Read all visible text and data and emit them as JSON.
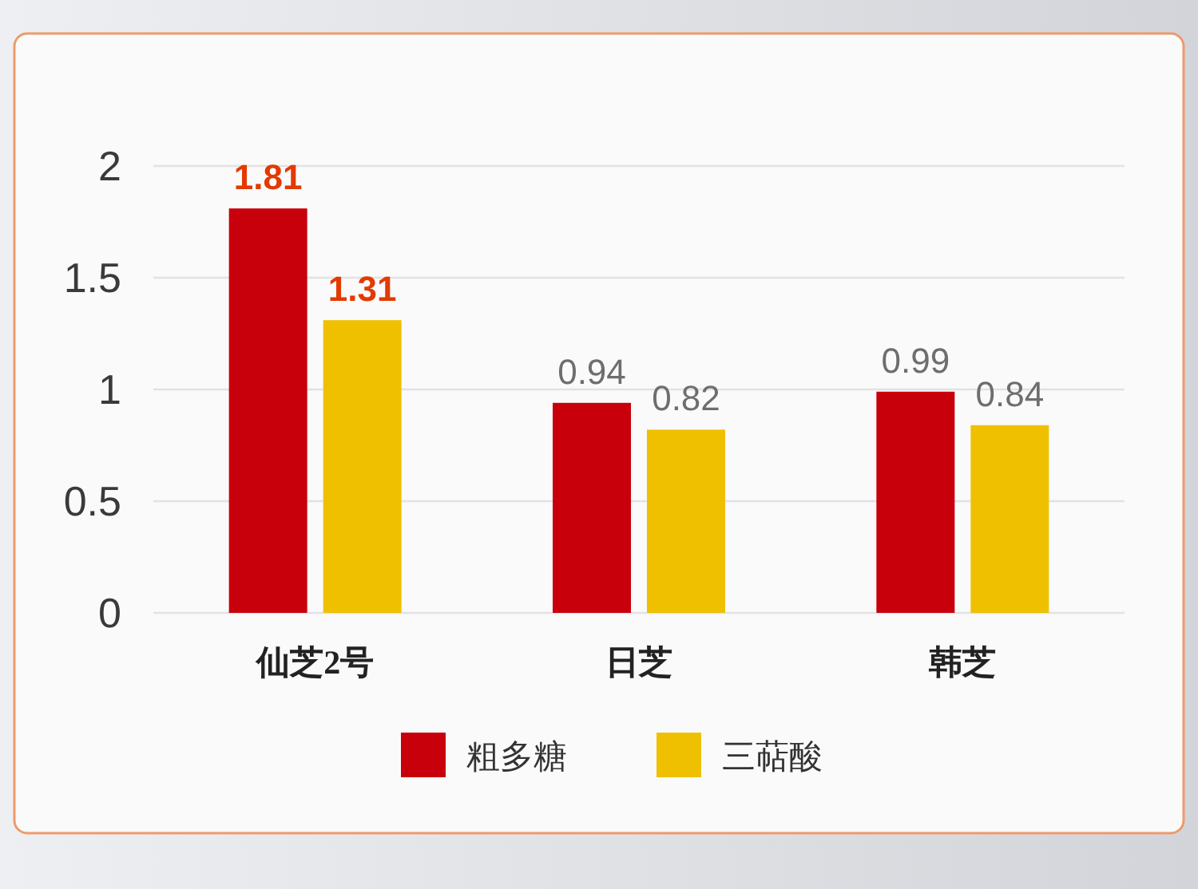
{
  "chart_data": {
    "type": "bar",
    "categories": [
      "仙芝2号",
      "日芝",
      "韩芝"
    ],
    "series": [
      {
        "name": "粗多糖",
        "color": "#c8000b",
        "values": [
          1.81,
          0.94,
          0.99
        ]
      },
      {
        "name": "三萜酸",
        "color": "#efc000",
        "values": [
          1.31,
          0.82,
          0.84
        ]
      }
    ],
    "ylim": [
      0,
      2
    ],
    "yticks": [
      0,
      0.5,
      1,
      1.5,
      2
    ],
    "grid": "y",
    "legend": "bottom",
    "data_labels": true
  }
}
